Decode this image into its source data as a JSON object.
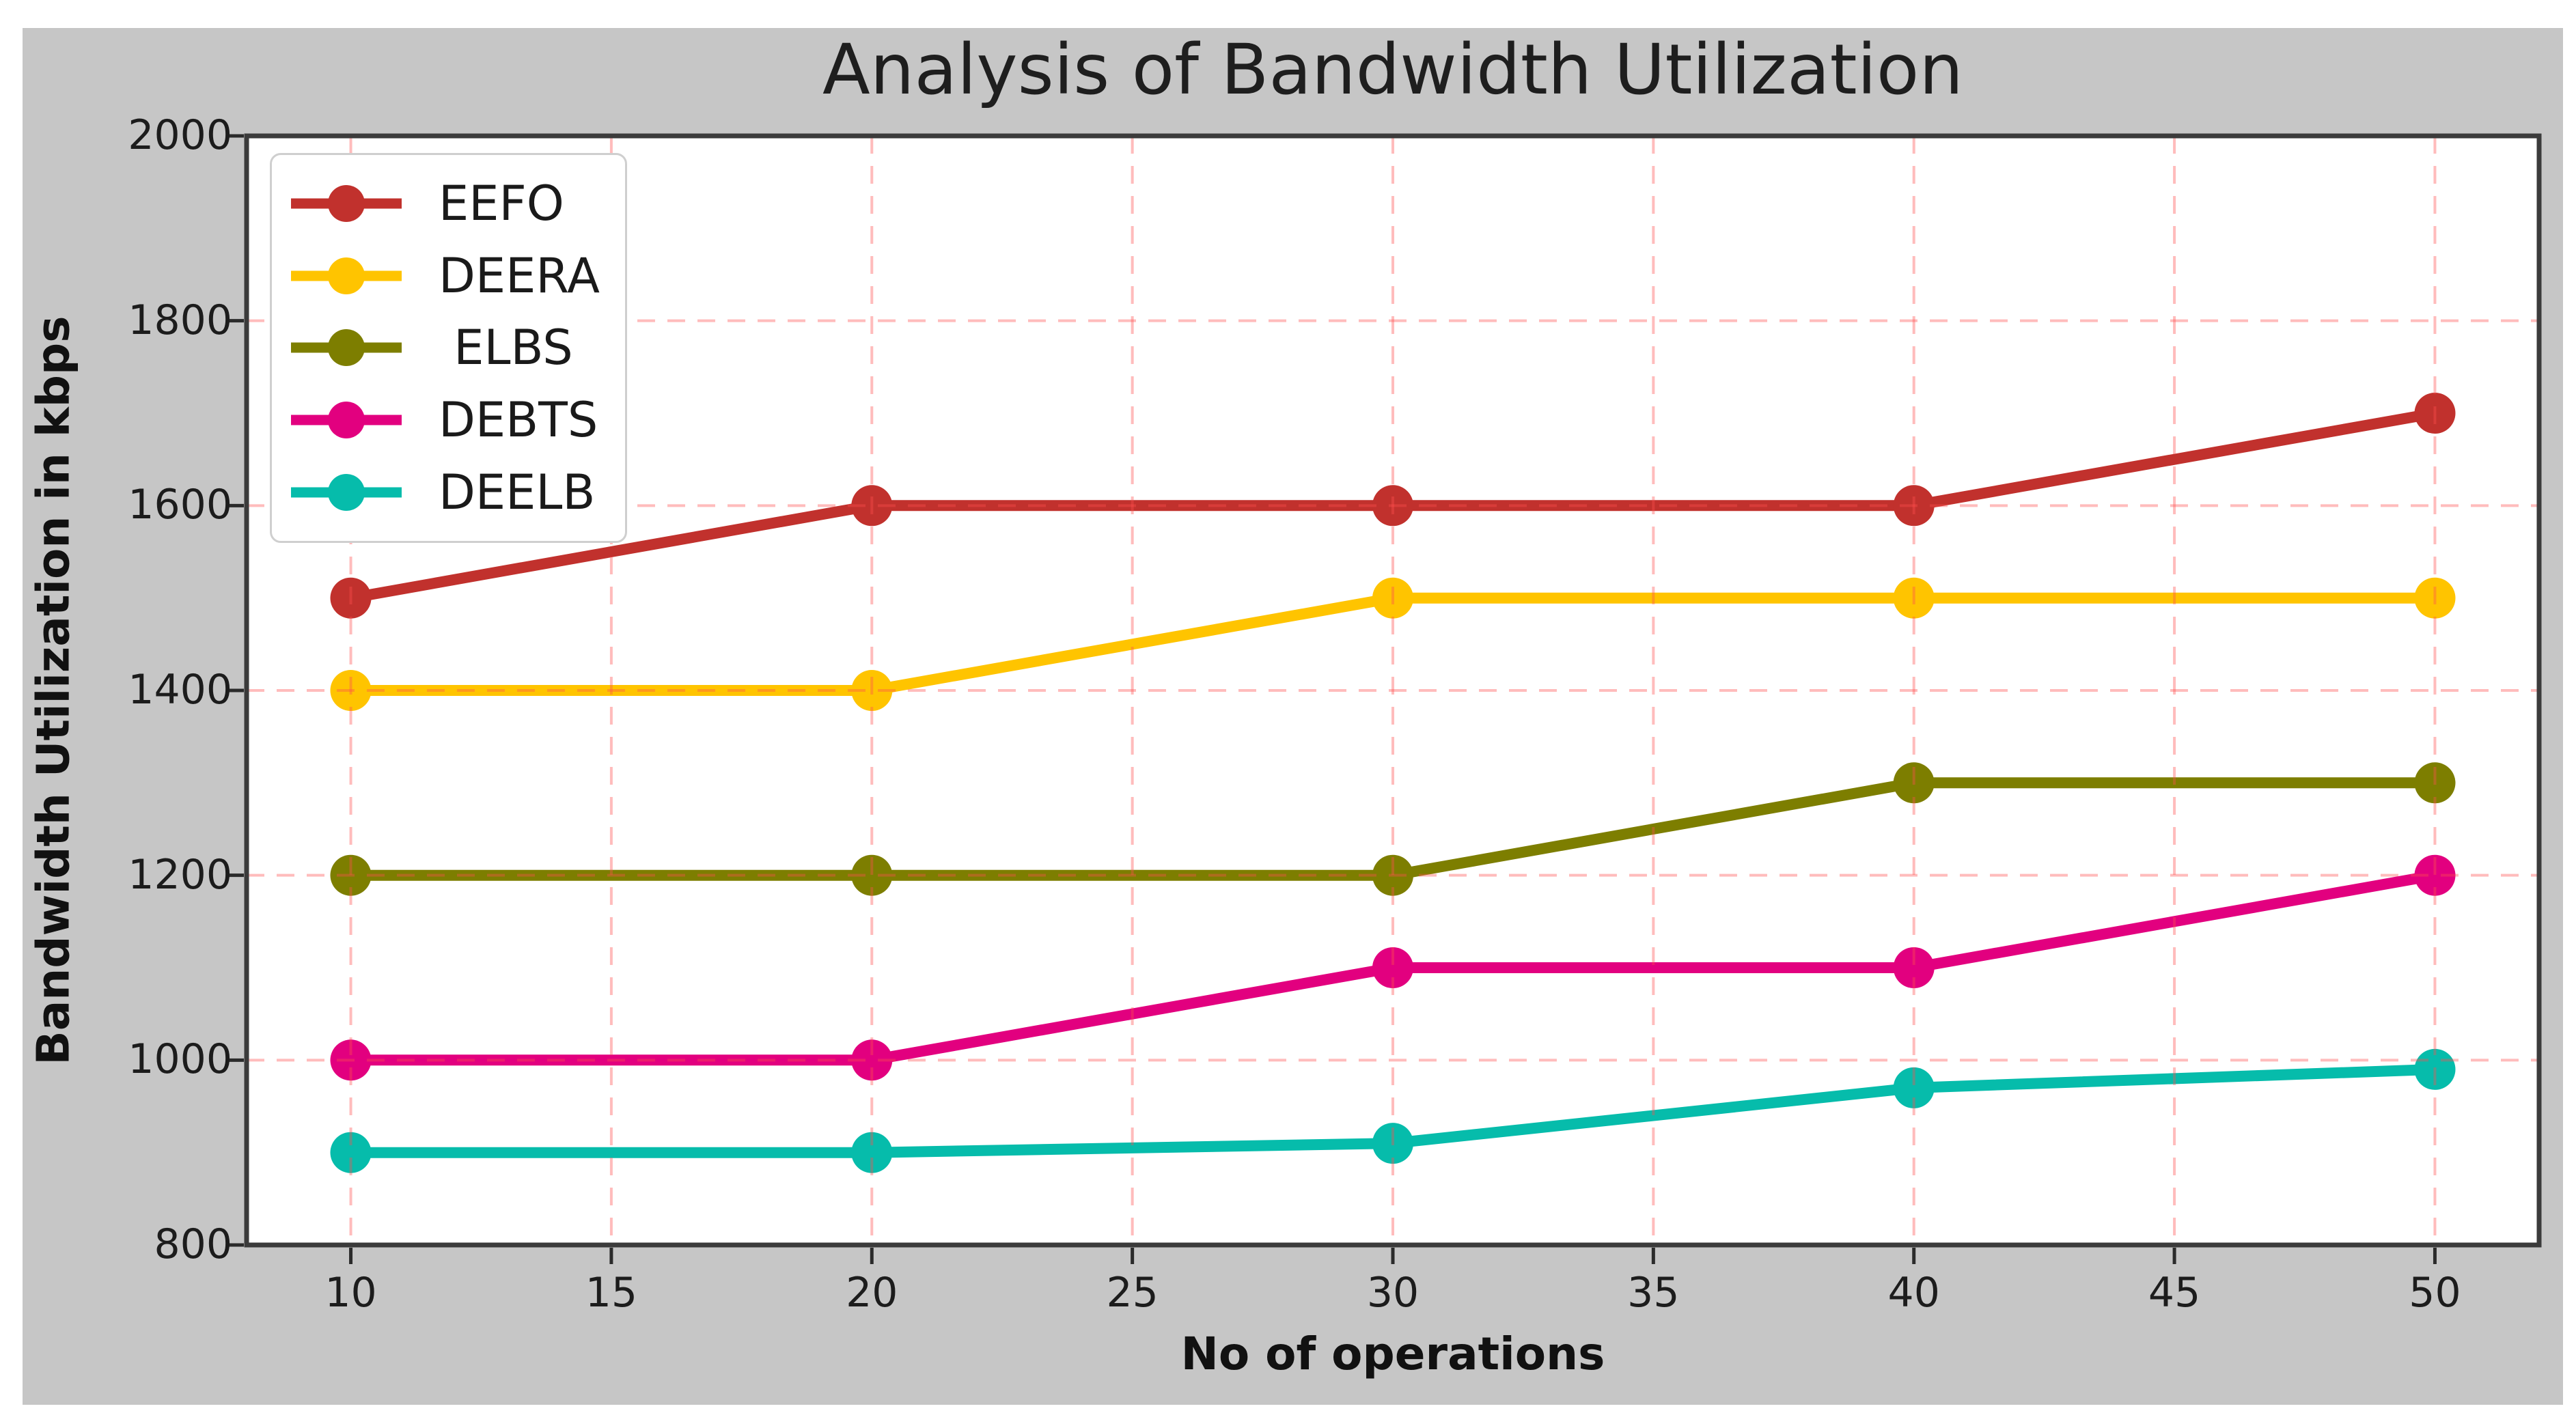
{
  "title": "Analysis of Bandwidth Utilization",
  "chart_data": {
    "type": "line",
    "title": "Analysis of Bandwidth Utilization",
    "xlabel": "No of operations",
    "ylabel": "Bandwidth Utilization in kbps",
    "x": [
      10,
      20,
      30,
      40,
      50
    ],
    "series": [
      {
        "name": "EEFO",
        "color": "#c1312d",
        "values": [
          1500,
          1600,
          1600,
          1600,
          1700
        ]
      },
      {
        "name": "DEERA",
        "color": "#ffc400",
        "values": [
          1400,
          1400,
          1500,
          1500,
          1500
        ]
      },
      {
        "name": " ELBS",
        "color": "#7d7e00",
        "values": [
          1200,
          1200,
          1200,
          1300,
          1300
        ]
      },
      {
        "name": "DEBTS",
        "color": "#e2007f",
        "values": [
          1000,
          1000,
          1100,
          1100,
          1200
        ]
      },
      {
        "name": "DEELB",
        "color": "#06bcab",
        "values": [
          900,
          900,
          910,
          970,
          990
        ]
      }
    ],
    "xlim": [
      8,
      52
    ],
    "ylim": [
      800,
      2000
    ],
    "xticks": [
      10,
      15,
      20,
      25,
      30,
      35,
      40,
      45,
      50
    ],
    "yticks": [
      800,
      1000,
      1200,
      1400,
      1600,
      1800,
      2000
    ],
    "grid": true,
    "grid_style": "dashed",
    "legend_position": "upper left"
  },
  "colors": {
    "figure_bg": "#c6c6c6",
    "plot_bg": "#ffffff",
    "spine": "#3b3b3b",
    "grid": "#ff5050",
    "tick": "#2b2b2b",
    "text": "#1c1c1c"
  }
}
